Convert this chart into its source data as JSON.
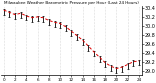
{
  "title": "Milwaukee Weather Barometric Pressure per Hour (Last 24 Hours)",
  "ylim": [
    28.9,
    30.45
  ],
  "xlim": [
    -0.5,
    24.5
  ],
  "background_color": "#ffffff",
  "tick_color": "#000000",
  "line_color": "#dd0000",
  "num_hours": 25,
  "pressure_values": [
    30.35,
    30.3,
    30.25,
    30.28,
    30.22,
    30.18,
    30.2,
    30.18,
    30.12,
    30.08,
    30.05,
    29.98,
    29.88,
    29.78,
    29.68,
    29.55,
    29.42,
    29.3,
    29.18,
    29.1,
    29.05,
    29.08,
    29.14,
    29.2,
    29.22
  ],
  "yticks": [
    29.0,
    29.2,
    29.4,
    29.6,
    29.8,
    30.0,
    30.2,
    30.4
  ],
  "xtick_step": 2,
  "grid_color": "#bbbbbb",
  "comb_down": 0.1,
  "comb_up": 0.03
}
